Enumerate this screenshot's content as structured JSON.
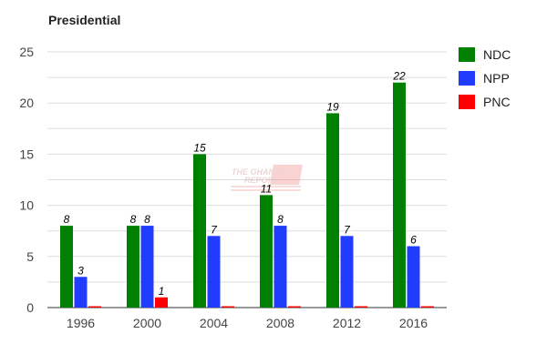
{
  "chart_data": {
    "type": "bar",
    "title": "Presidential",
    "xlabel": "",
    "ylabel": "",
    "ylim": [
      0,
      25
    ],
    "yticks": [
      0,
      5,
      10,
      15,
      20,
      25
    ],
    "categories": [
      "1996",
      "2000",
      "2004",
      "2008",
      "2012",
      "2016"
    ],
    "series": [
      {
        "name": "NDC",
        "color": "#008000",
        "values": [
          8,
          8,
          15,
          11,
          19,
          22
        ]
      },
      {
        "name": "NPP",
        "color": "#1f3cff",
        "values": [
          3,
          8,
          7,
          8,
          7,
          6
        ]
      },
      {
        "name": "PNC",
        "color": "#ff0000",
        "values": [
          0,
          1,
          0,
          0,
          0,
          0
        ]
      }
    ],
    "legend": "right",
    "grid": true,
    "watermark": "THE GHANA REPORT"
  }
}
